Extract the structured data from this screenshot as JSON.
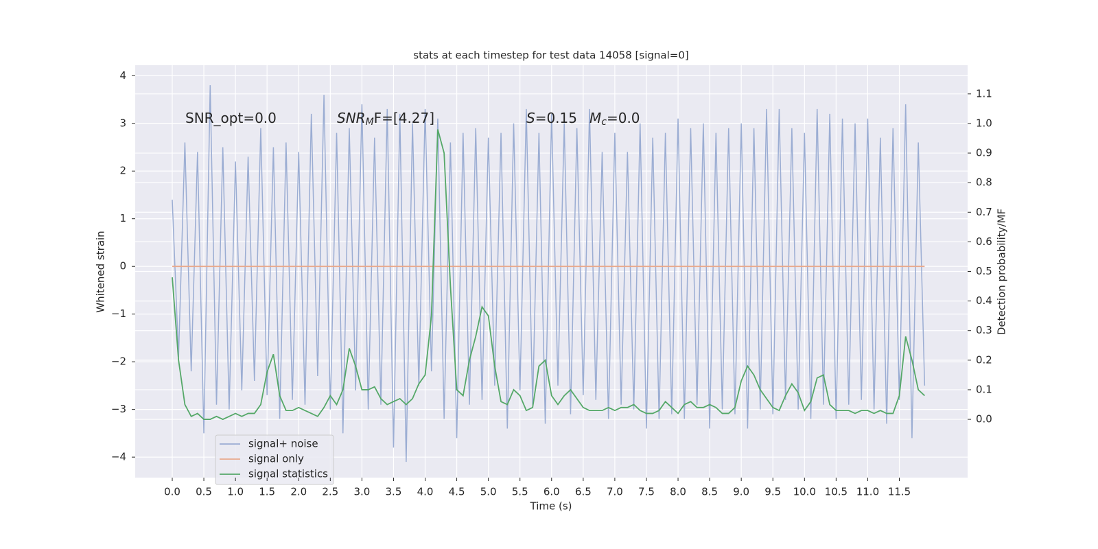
{
  "chart_data": {
    "type": "line",
    "title": "stats at each timestep for test data 14058 [signal=0]",
    "xlabel": "Time (s)",
    "ylabel": "Whitened strain",
    "y2label": "Detection probability/MF",
    "x": [
      0,
      0.1,
      0.2,
      0.3,
      0.4,
      0.5,
      0.6,
      0.7,
      0.8,
      0.9,
      1,
      1.1,
      1.2,
      1.3,
      1.4,
      1.5,
      1.6,
      1.7,
      1.8,
      1.9,
      2,
      2.1,
      2.2,
      2.3,
      2.4,
      2.5,
      2.6,
      2.7,
      2.8,
      2.9,
      3,
      3.1,
      3.2,
      3.3,
      3.4,
      3.5,
      3.6,
      3.7,
      3.8,
      3.9,
      4,
      4.1,
      4.2,
      4.3,
      4.4,
      4.5,
      4.6,
      4.7,
      4.8,
      4.9,
      5,
      5.1,
      5.2,
      5.3,
      5.4,
      5.5,
      5.6,
      5.7,
      5.8,
      5.9,
      6,
      6.1,
      6.2,
      6.3,
      6.4,
      6.5,
      6.6,
      6.7,
      6.8,
      6.9,
      7,
      7.1,
      7.2,
      7.3,
      7.4,
      7.5,
      7.6,
      7.7,
      7.8,
      7.9,
      8,
      8.1,
      8.2,
      8.3,
      8.4,
      8.5,
      8.6,
      8.7,
      8.8,
      8.9,
      9,
      9.1,
      9.2,
      9.3,
      9.4,
      9.5,
      9.6,
      9.7,
      9.8,
      9.9,
      10,
      10.1,
      10.2,
      10.3,
      10.4,
      10.5,
      10.6,
      10.7,
      10.8,
      10.9,
      11,
      11.1,
      11.2,
      11.3,
      11.4,
      11.5,
      11.6,
      11.7,
      11.8,
      11.9
    ],
    "series": [
      {
        "name": "signal+ noise",
        "color": "#9badd3",
        "values": [
          1.4,
          -1.9,
          2.6,
          -2.2,
          2.4,
          -3.5,
          3.8,
          -2.9,
          2.5,
          -3.0,
          2.2,
          -2.6,
          2.3,
          -2.4,
          2.9,
          -2.7,
          2.5,
          -3.2,
          2.6,
          -2.8,
          2.4,
          -2.9,
          3.2,
          -2.3,
          3.6,
          -3.0,
          2.8,
          -3.5,
          2.9,
          -2.6,
          3.4,
          -3.0,
          2.7,
          -2.9,
          3.3,
          -3.8,
          3.2,
          -4.1,
          3.0,
          -2.5,
          3.3,
          -2.2,
          3.1,
          -3.2,
          2.6,
          -3.6,
          2.8,
          -2.9,
          2.9,
          -2.8,
          2.7,
          -2.5,
          2.8,
          -3.4,
          3.0,
          -2.6,
          3.3,
          -2.9,
          2.8,
          -3.3,
          3.2,
          -2.5,
          3.0,
          -3.1,
          2.9,
          -2.7,
          3.3,
          -2.8,
          2.4,
          -3.2,
          2.8,
          -2.9,
          2.4,
          -3.0,
          3.0,
          -3.4,
          2.7,
          -3.2,
          2.8,
          -3.1,
          3.1,
          -3.2,
          2.9,
          -2.9,
          3.0,
          -3.4,
          2.8,
          -3.0,
          2.9,
          -3.1,
          3.0,
          -3.4,
          2.9,
          -3.0,
          3.3,
          -3.1,
          3.3,
          -2.8,
          2.9,
          -3.0,
          2.8,
          -3.2,
          3.3,
          -2.9,
          3.2,
          -3.2,
          3.1,
          -2.9,
          3.0,
          -2.8,
          3.1,
          -3.0,
          2.7,
          -3.3,
          2.9,
          -2.8,
          3.4,
          -3.6,
          2.6,
          -2.5
        ]
      },
      {
        "name": "signal only",
        "color": "#e9a98c",
        "values": [
          0,
          0,
          0,
          0,
          0,
          0,
          0,
          0,
          0,
          0,
          0,
          0,
          0,
          0,
          0,
          0,
          0,
          0,
          0,
          0,
          0,
          0,
          0,
          0,
          0,
          0,
          0,
          0,
          0,
          0,
          0,
          0,
          0,
          0,
          0,
          0,
          0,
          0,
          0,
          0,
          0,
          0,
          0,
          0,
          0,
          0,
          0,
          0,
          0,
          0,
          0,
          0,
          0,
          0,
          0,
          0,
          0,
          0,
          0,
          0,
          0,
          0,
          0,
          0,
          0,
          0,
          0,
          0,
          0,
          0,
          0,
          0,
          0,
          0,
          0,
          0,
          0,
          0,
          0,
          0,
          0,
          0,
          0,
          0,
          0,
          0,
          0,
          0,
          0,
          0,
          0,
          0,
          0,
          0,
          0,
          0,
          0,
          0,
          0,
          0,
          0,
          0,
          0,
          0,
          0,
          0,
          0,
          0,
          0,
          0,
          0,
          0,
          0,
          0,
          0,
          0,
          0,
          0,
          0,
          0
        ]
      },
      {
        "name": "signal statistics",
        "color": "#55a868",
        "axis": "y2",
        "values": [
          0.48,
          0.2,
          0.05,
          0.01,
          0.02,
          0,
          0,
          0.01,
          0,
          0.01,
          0.02,
          0.01,
          0.02,
          0.02,
          0.05,
          0.16,
          0.22,
          0.08,
          0.03,
          0.03,
          0.04,
          0.03,
          0.02,
          0.01,
          0.04,
          0.08,
          0.05,
          0.1,
          0.24,
          0.18,
          0.1,
          0.1,
          0.11,
          0.07,
          0.05,
          0.06,
          0.07,
          0.05,
          0.07,
          0.12,
          0.15,
          0.35,
          0.98,
          0.9,
          0.45,
          0.1,
          0.08,
          0.2,
          0.28,
          0.38,
          0.35,
          0.18,
          0.06,
          0.05,
          0.1,
          0.08,
          0.03,
          0.04,
          0.18,
          0.2,
          0.08,
          0.05,
          0.08,
          0.1,
          0.07,
          0.04,
          0.03,
          0.03,
          0.03,
          0.04,
          0.03,
          0.04,
          0.04,
          0.05,
          0.03,
          0.02,
          0.02,
          0.03,
          0.06,
          0.04,
          0.02,
          0.05,
          0.06,
          0.04,
          0.04,
          0.05,
          0.04,
          0.02,
          0.02,
          0.04,
          0.13,
          0.18,
          0.15,
          0.1,
          0.07,
          0.04,
          0.03,
          0.08,
          0.12,
          0.09,
          0.03,
          0.06,
          0.14,
          0.15,
          0.05,
          0.03,
          0.03,
          0.03,
          0.02,
          0.03,
          0.03,
          0.02,
          0.03,
          0.02,
          0.02,
          0.08,
          0.28,
          0.2,
          0.1,
          0.08
        ]
      }
    ],
    "xlim": [
      -0.586,
      12.58
    ],
    "xticks": [
      {
        "value": 0,
        "label": "0.0"
      },
      0.5,
      {
        "value": 1,
        "label": "1.0"
      },
      1.5,
      {
        "value": 2,
        "label": "2.0"
      },
      2.5,
      {
        "value": 3,
        "label": "3.0"
      },
      3.5,
      {
        "value": 4,
        "label": "4.0"
      },
      4.5,
      {
        "value": 5,
        "label": "5.0"
      },
      5.5,
      {
        "value": 6,
        "label": "6.0"
      },
      6.5,
      {
        "value": 7,
        "label": "7.0"
      },
      7.5,
      {
        "value": 8,
        "label": "8.0"
      },
      8.5,
      {
        "value": 9,
        "label": "9.0"
      },
      9.5,
      {
        "value": 10,
        "label": "10.0"
      },
      10.5,
      {
        "value": 11,
        "label": "11.0"
      },
      11.5
    ],
    "ylim": [
      -4.43,
      4.22
    ],
    "yticks": [
      {
        "value": -4,
        "label": "−4"
      },
      {
        "value": -3,
        "label": "−3"
      },
      {
        "value": -2,
        "label": "−2"
      },
      {
        "value": -1,
        "label": "−1"
      },
      0,
      1,
      2,
      3,
      4
    ],
    "y2lim": [
      -0.197,
      1.197
    ],
    "y2ticks": [
      {
        "value": 0,
        "label": "0.0"
      },
      0.1,
      0.2,
      0.3,
      0.4,
      0.5,
      0.6,
      0.7,
      0.8,
      0.9,
      {
        "value": 1,
        "label": "1.0"
      },
      1.1
    ],
    "grid": true,
    "legend": "lower left",
    "annotations": [
      [
        {
          "text": "SNR_opt=0.0"
        }
      ],
      [
        {
          "text": "SNR",
          "italic": true
        },
        {
          "text": "M",
          "italic": true,
          "sub": true
        },
        {
          "text": "F=[4.27]"
        }
      ],
      [
        {
          "text": "S",
          "italic": true
        },
        {
          "text": "=0.15"
        }
      ],
      [
        {
          "text": "M",
          "italic": true
        },
        {
          "text": "c",
          "italic": true,
          "sub": true
        },
        {
          "text": "=0.0"
        }
      ]
    ]
  }
}
